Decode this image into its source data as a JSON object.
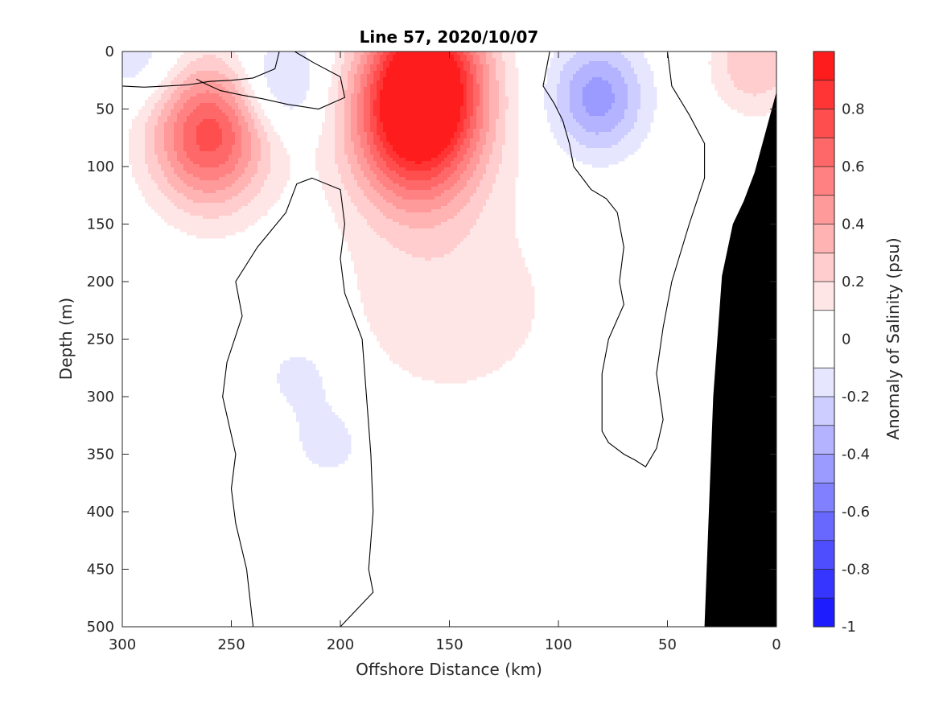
{
  "chart_data": {
    "type": "heatmap",
    "title": "Line 57, 2020/10/07",
    "xlabel": "Offshore Distance (km)",
    "ylabel": "Depth (m)",
    "colorbar_label": "Anomaly of Salinity (psu)",
    "xlim": [
      300,
      0
    ],
    "ylim": [
      0,
      500
    ],
    "x_reversed": true,
    "y_reversed": true,
    "x_ticks": [
      300,
      250,
      200,
      150,
      100,
      50,
      0
    ],
    "y_ticks": [
      0,
      50,
      100,
      150,
      200,
      250,
      300,
      350,
      400,
      450,
      500
    ],
    "colorbar_ticks": [
      "-1",
      "-0.8",
      "-0.6",
      "-0.4",
      "-0.2",
      "0",
      "0.2",
      "0.4",
      "0.6",
      "0.8"
    ],
    "colorbar_range": [
      -1,
      1
    ],
    "contour_levels": [
      -1,
      -0.9,
      -0.8,
      -0.7,
      -0.6,
      -0.5,
      -0.4,
      -0.3,
      -0.2,
      -0.1,
      0.1,
      0.2,
      0.3,
      0.4,
      0.5,
      0.6,
      0.7,
      0.8,
      0.9,
      1
    ],
    "colors": {
      "positive": "#ff0000",
      "negative": "#0000ff",
      "zero": "#ffffff",
      "bathymetry": "#000000",
      "zero_contour": "#000000"
    },
    "features": [
      {
        "sign": "positive",
        "center_km": 165,
        "center_depth_m": 65,
        "peak_psu": 0.95
      },
      {
        "sign": "positive",
        "center_km": 260,
        "center_depth_m": 72,
        "peak_psu": 0.75
      },
      {
        "sign": "positive",
        "center_km": 160,
        "center_depth_m": 10,
        "peak_psu": 0.7
      },
      {
        "sign": "positive",
        "center_km": 10,
        "center_depth_m": 10,
        "peak_psu": 0.3
      },
      {
        "sign": "negative",
        "center_km": 82,
        "center_depth_m": 40,
        "peak_psu": -0.45
      },
      {
        "sign": "negative",
        "center_km": 228,
        "center_depth_m": 28,
        "peak_psu": -0.3
      },
      {
        "sign": "negative",
        "center_km": 292,
        "center_depth_m": 8,
        "peak_psu": -0.2
      },
      {
        "sign": "negative",
        "center_km": 218,
        "center_depth_m": 280,
        "peak_psu": -0.15
      },
      {
        "sign": "negative",
        "center_km": 205,
        "center_depth_m": 340,
        "peak_psu": -0.15
      }
    ],
    "bathymetry": [
      {
        "x_km": 0,
        "depth_m": 35
      },
      {
        "x_km": 5,
        "depth_m": 70
      },
      {
        "x_km": 10,
        "depth_m": 105
      },
      {
        "x_km": 15,
        "depth_m": 130
      },
      {
        "x_km": 20,
        "depth_m": 150
      },
      {
        "x_km": 25,
        "depth_m": 195
      },
      {
        "x_km": 29,
        "depth_m": 300
      },
      {
        "x_km": 31,
        "depth_m": 400
      },
      {
        "x_km": 33,
        "depth_m": 500
      }
    ]
  }
}
